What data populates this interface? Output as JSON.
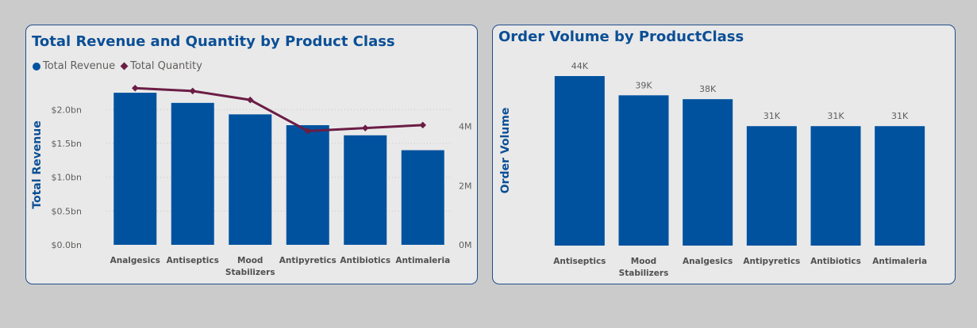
{
  "cards": [
    {
      "title": "Total Revenue and Quantity by Product Class",
      "legend": [
        {
          "label": "Total Revenue",
          "marker": "circle",
          "color": "#00529f"
        },
        {
          "label": "Total Quantity",
          "marker": "diamond",
          "color": "#6b1d45"
        }
      ]
    },
    {
      "title": "Order Volume by ProductClass"
    }
  ],
  "chart_data": [
    {
      "type": "bar",
      "combo": "bar+line",
      "title": "Total Revenue and Quantity by Product Class",
      "categories": [
        "Analgesics",
        "Antiseptics",
        "Mood Stabilizers",
        "Antipyretics",
        "Antibiotics",
        "Antimaleria"
      ],
      "series": [
        {
          "name": "Total Revenue",
          "type": "bar",
          "axis": "left",
          "color": "#00529f",
          "values": [
            2.25,
            2.1,
            1.93,
            1.77,
            1.62,
            1.4
          ]
        },
        {
          "name": "Total Quantity",
          "type": "line",
          "axis": "right",
          "color": "#6b1d45",
          "values": [
            5.3,
            5.2,
            4.9,
            3.85,
            3.95,
            4.05
          ]
        }
      ],
      "ylabel": "Total Revenue",
      "ylim": [
        0,
        2.45
      ],
      "yticks": [
        0,
        0.5,
        1.0,
        1.5,
        2.0
      ],
      "yticklabels": [
        "$0.0bn",
        "$0.5bn",
        "$1.0bn",
        "$1.5bn",
        "$2.0bn"
      ],
      "y2lim": [
        0,
        5.6
      ],
      "y2ticks": [
        0,
        2,
        4
      ],
      "y2ticklabels": [
        "0M",
        "2M",
        "4M"
      ],
      "grid": true,
      "legend_position": "top-left"
    },
    {
      "type": "bar",
      "title": "Order Volume by ProductClass",
      "categories": [
        "Antiseptics",
        "Mood Stabilizers",
        "Analgesics",
        "Antipyretics",
        "Antibiotics",
        "Antimaleria"
      ],
      "series": [
        {
          "type": "bar",
          "color": "#00529f",
          "values": [
            44,
            39,
            38,
            31,
            31,
            31
          ],
          "data_labels": [
            "44K",
            "39K",
            "38K",
            "31K",
            "31K",
            "31K"
          ]
        }
      ],
      "ylabel": "Order Volume",
      "ylim": [
        0,
        44
      ],
      "grid": false
    }
  ]
}
